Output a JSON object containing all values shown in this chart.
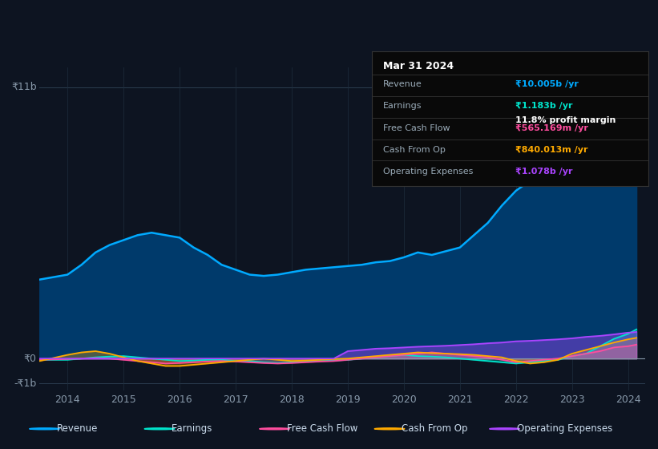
{
  "bg_color": "#0d1421",
  "plot_bg_color": "#0d1421",
  "title_box": {
    "date": "Mar 31 2024",
    "revenue_val": "₹10.005b /yr",
    "earnings_val": "₹1.183b /yr",
    "profit_margin": "11.8% profit margin",
    "fcf_val": "₹565.169m /yr",
    "cashop_val": "₹840.013m /yr",
    "opex_val": "₹1.078b /yr"
  },
  "years": [
    2013.5,
    2014.0,
    2014.25,
    2014.5,
    2014.75,
    2015.0,
    2015.25,
    2015.5,
    2015.75,
    2016.0,
    2016.25,
    2016.5,
    2016.75,
    2017.0,
    2017.25,
    2017.5,
    2017.75,
    2018.0,
    2018.25,
    2018.5,
    2018.75,
    2019.0,
    2019.25,
    2019.5,
    2019.75,
    2020.0,
    2020.25,
    2020.5,
    2020.75,
    2021.0,
    2021.25,
    2021.5,
    2021.75,
    2022.0,
    2022.25,
    2022.5,
    2022.75,
    2023.0,
    2023.25,
    2023.5,
    2023.75,
    2024.0,
    2024.15
  ],
  "revenue": [
    3.2,
    3.4,
    3.8,
    4.3,
    4.6,
    4.8,
    5.0,
    5.1,
    5.0,
    4.9,
    4.5,
    4.2,
    3.8,
    3.6,
    3.4,
    3.35,
    3.4,
    3.5,
    3.6,
    3.65,
    3.7,
    3.75,
    3.8,
    3.9,
    3.95,
    4.1,
    4.3,
    4.2,
    4.35,
    4.5,
    5.0,
    5.5,
    6.2,
    6.8,
    7.2,
    7.5,
    7.8,
    8.2,
    8.6,
    9.0,
    9.5,
    10.0,
    10.005
  ],
  "earnings": [
    -0.05,
    -0.05,
    0.0,
    0.05,
    0.08,
    0.1,
    0.05,
    0.0,
    -0.05,
    -0.1,
    -0.08,
    -0.05,
    -0.05,
    -0.1,
    -0.1,
    -0.15,
    -0.18,
    -0.15,
    -0.12,
    -0.1,
    -0.08,
    -0.05,
    0.0,
    0.05,
    0.1,
    0.15,
    0.1,
    0.08,
    0.05,
    0.0,
    -0.05,
    -0.1,
    -0.15,
    -0.2,
    -0.15,
    -0.1,
    -0.05,
    0.1,
    0.2,
    0.5,
    0.8,
    1.0,
    1.183
  ],
  "free_cash_flow": [
    -0.05,
    -0.02,
    0.0,
    0.02,
    0.0,
    -0.05,
    -0.1,
    -0.15,
    -0.2,
    -0.18,
    -0.15,
    -0.12,
    -0.1,
    -0.12,
    -0.15,
    -0.18,
    -0.2,
    -0.18,
    -0.15,
    -0.12,
    -0.1,
    -0.05,
    0.0,
    0.05,
    0.1,
    0.15,
    0.2,
    0.25,
    0.2,
    0.15,
    0.1,
    0.05,
    -0.05,
    -0.15,
    -0.1,
    -0.05,
    0.0,
    0.1,
    0.2,
    0.3,
    0.45,
    0.5,
    0.565
  ],
  "cash_from_op": [
    -0.1,
    0.15,
    0.25,
    0.3,
    0.2,
    0.05,
    -0.1,
    -0.2,
    -0.3,
    -0.3,
    -0.25,
    -0.2,
    -0.15,
    -0.1,
    -0.05,
    0.0,
    -0.05,
    -0.1,
    -0.08,
    -0.05,
    -0.02,
    0.0,
    0.05,
    0.1,
    0.15,
    0.2,
    0.25,
    0.22,
    0.2,
    0.18,
    0.15,
    0.1,
    0.05,
    -0.1,
    -0.2,
    -0.15,
    -0.05,
    0.2,
    0.35,
    0.5,
    0.65,
    0.78,
    0.84
  ],
  "operating_expenses": [
    0.0,
    0.0,
    0.0,
    0.0,
    0.0,
    0.0,
    0.0,
    0.0,
    0.0,
    0.0,
    0.0,
    0.0,
    0.0,
    0.0,
    0.0,
    0.0,
    0.0,
    0.0,
    0.0,
    0.0,
    0.0,
    0.3,
    0.35,
    0.4,
    0.42,
    0.45,
    0.48,
    0.5,
    0.52,
    0.55,
    0.58,
    0.62,
    0.65,
    0.7,
    0.72,
    0.75,
    0.78,
    0.82,
    0.88,
    0.92,
    0.98,
    1.05,
    1.078
  ],
  "ylim": [
    -1.3,
    11.8
  ],
  "ytick_labels": [
    "-₹1b",
    "₹0",
    "₹11b"
  ],
  "ytick_vals": [
    -1.0,
    0.0,
    11.0
  ],
  "xticks": [
    2014,
    2015,
    2016,
    2017,
    2018,
    2019,
    2020,
    2021,
    2022,
    2023,
    2024
  ],
  "revenue_color": "#00aaff",
  "earnings_color": "#00e5cc",
  "fcf_color": "#ff4d9e",
  "cashop_color": "#ffaa00",
  "opex_color": "#aa44ff",
  "revenue_fill_color": "#003a6b",
  "legend_items": [
    "Revenue",
    "Earnings",
    "Free Cash Flow",
    "Cash From Op",
    "Operating Expenses"
  ]
}
